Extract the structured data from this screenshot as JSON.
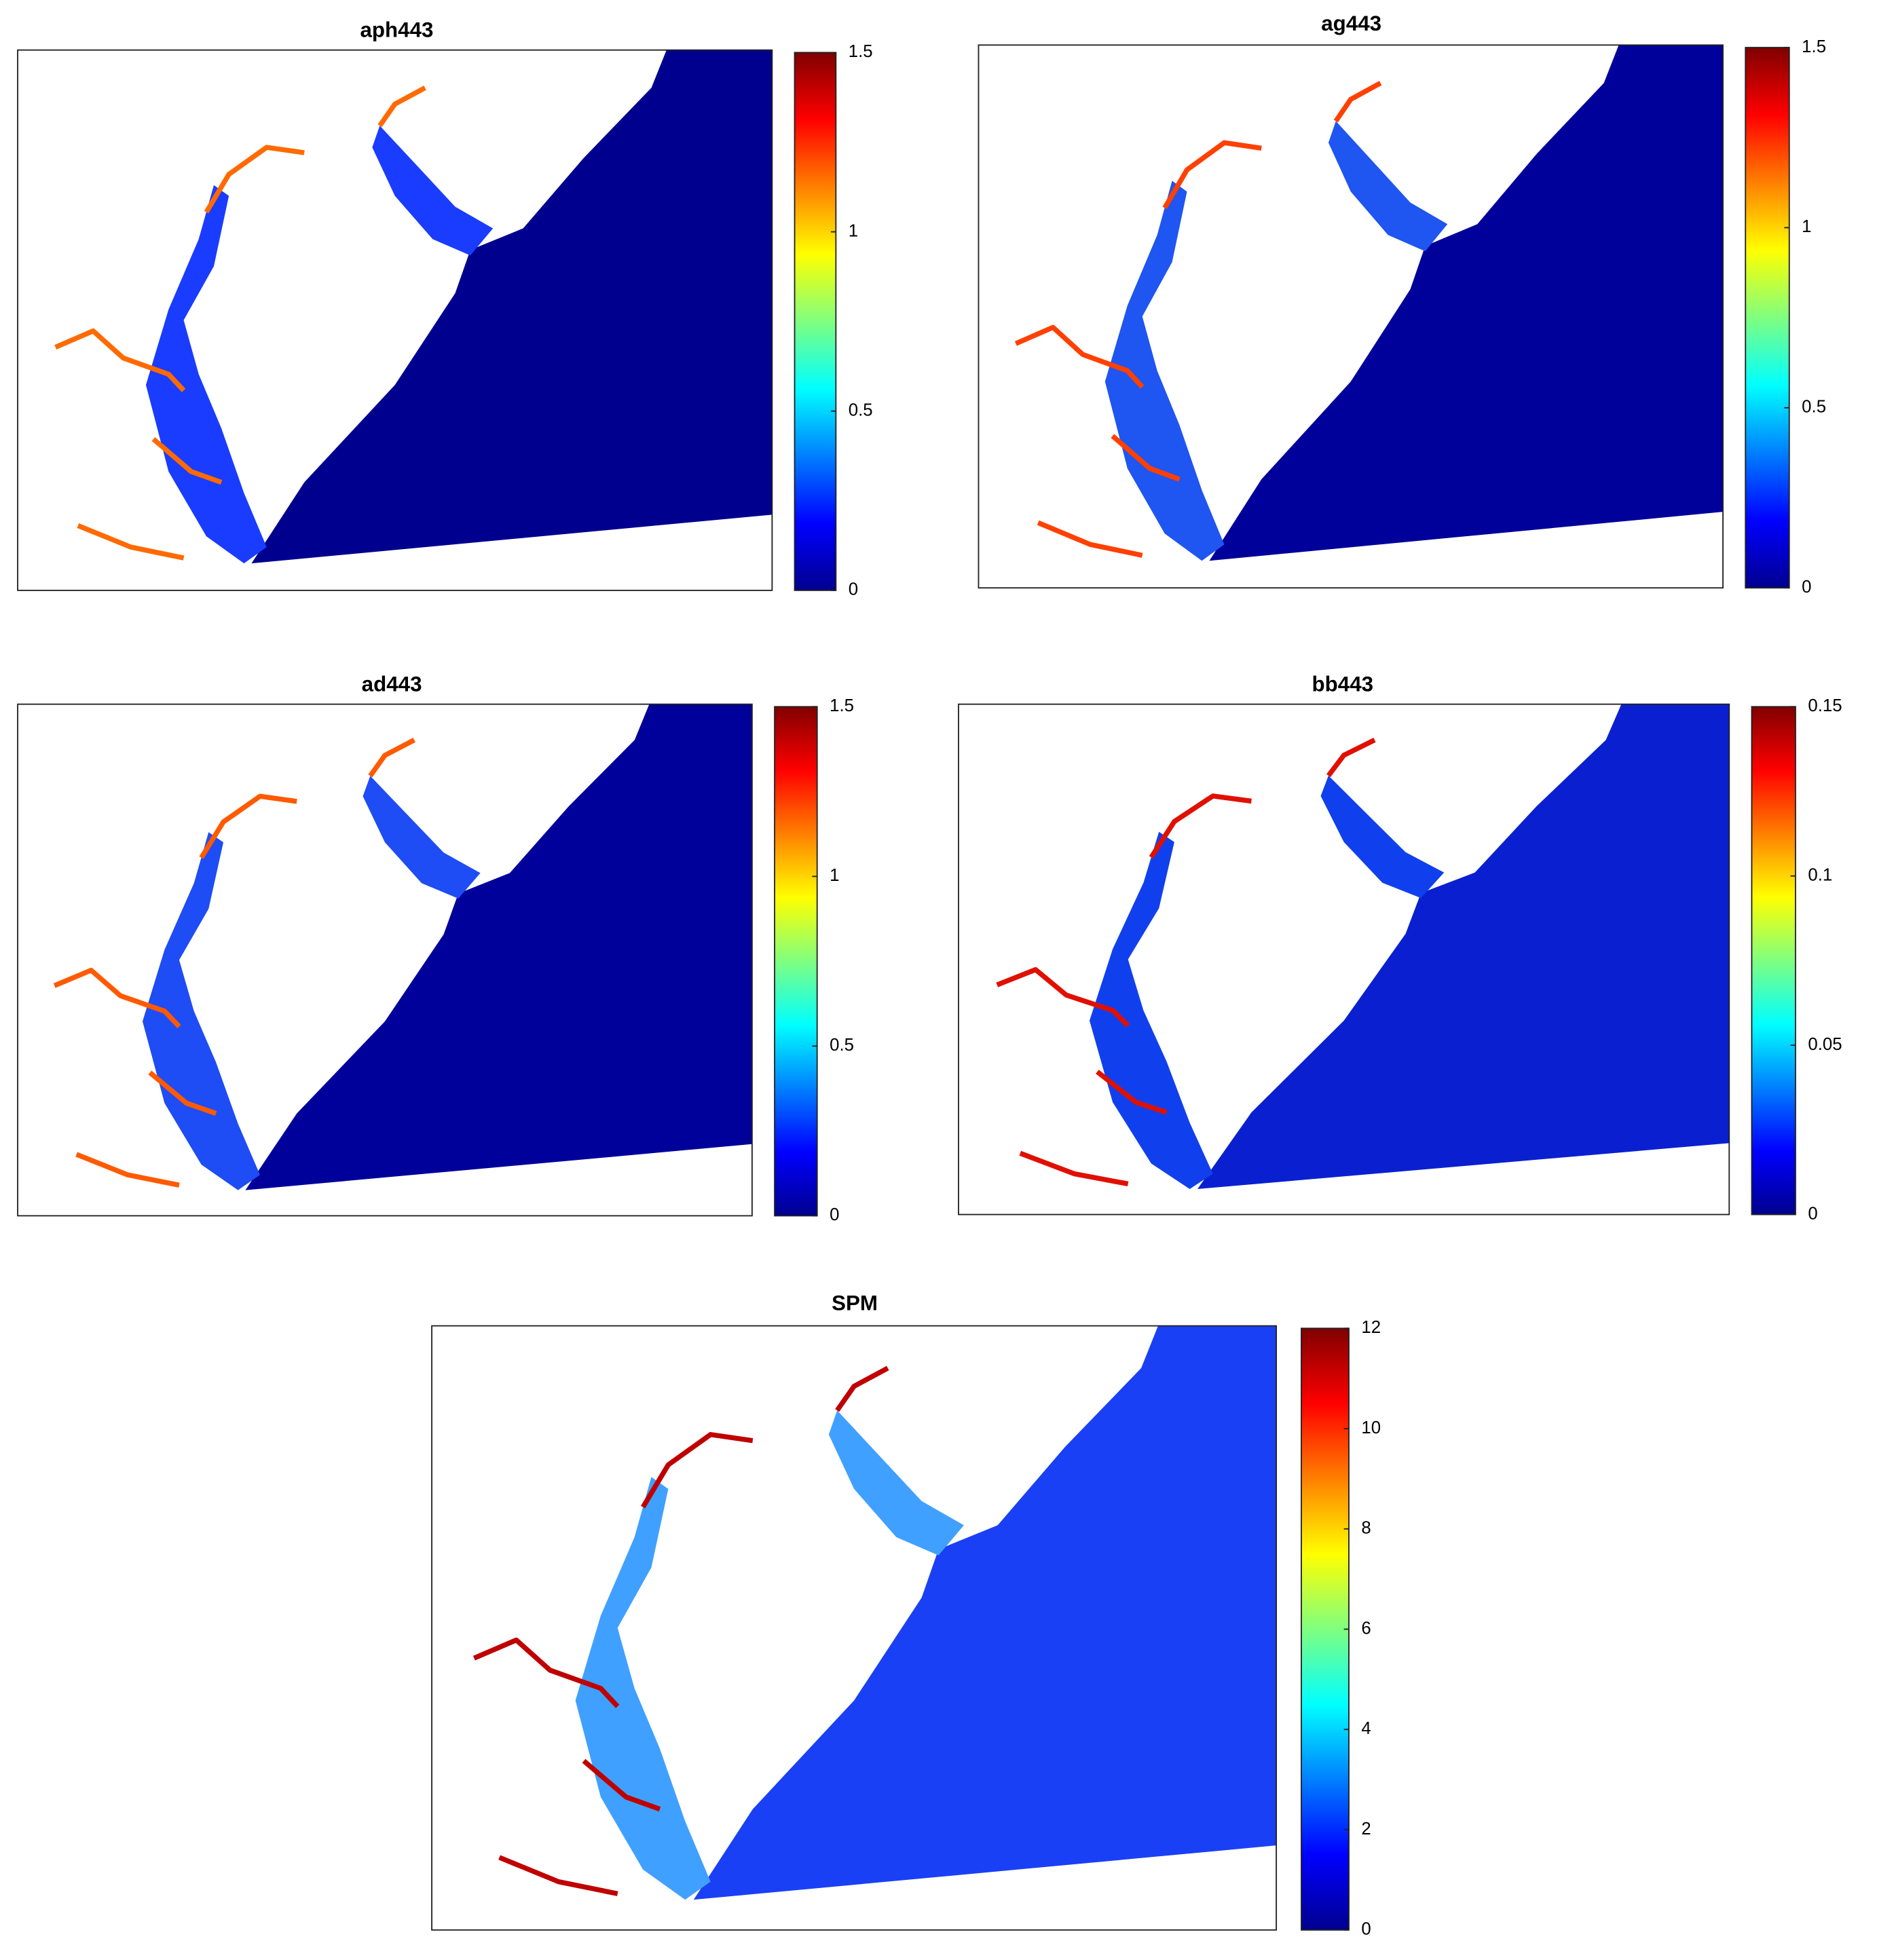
{
  "chart_data": [
    {
      "type": "colormap",
      "title": "aph443",
      "colormap": "jet",
      "clim": [
        0,
        1.5
      ],
      "cticks": [
        0,
        0.5,
        1,
        1.5
      ]
    },
    {
      "type": "colormap",
      "title": "ag443",
      "colormap": "jet",
      "clim": [
        0,
        1.5
      ],
      "cticks": [
        0,
        0.5,
        1,
        1.5
      ]
    },
    {
      "type": "colormap",
      "title": "ad443",
      "colormap": "jet",
      "clim": [
        0,
        1.5
      ],
      "cticks": [
        0,
        0.5,
        1,
        1.5
      ]
    },
    {
      "type": "colormap",
      "title": "bb443",
      "colormap": "jet",
      "clim": [
        0,
        0.15
      ],
      "cticks": [
        0,
        0.05,
        0.1,
        0.15
      ]
    },
    {
      "type": "colormap",
      "title": "SPM",
      "colormap": "jet",
      "clim": [
        0,
        12
      ],
      "cticks": [
        0,
        2,
        4,
        6,
        8,
        10,
        12
      ]
    }
  ]
}
